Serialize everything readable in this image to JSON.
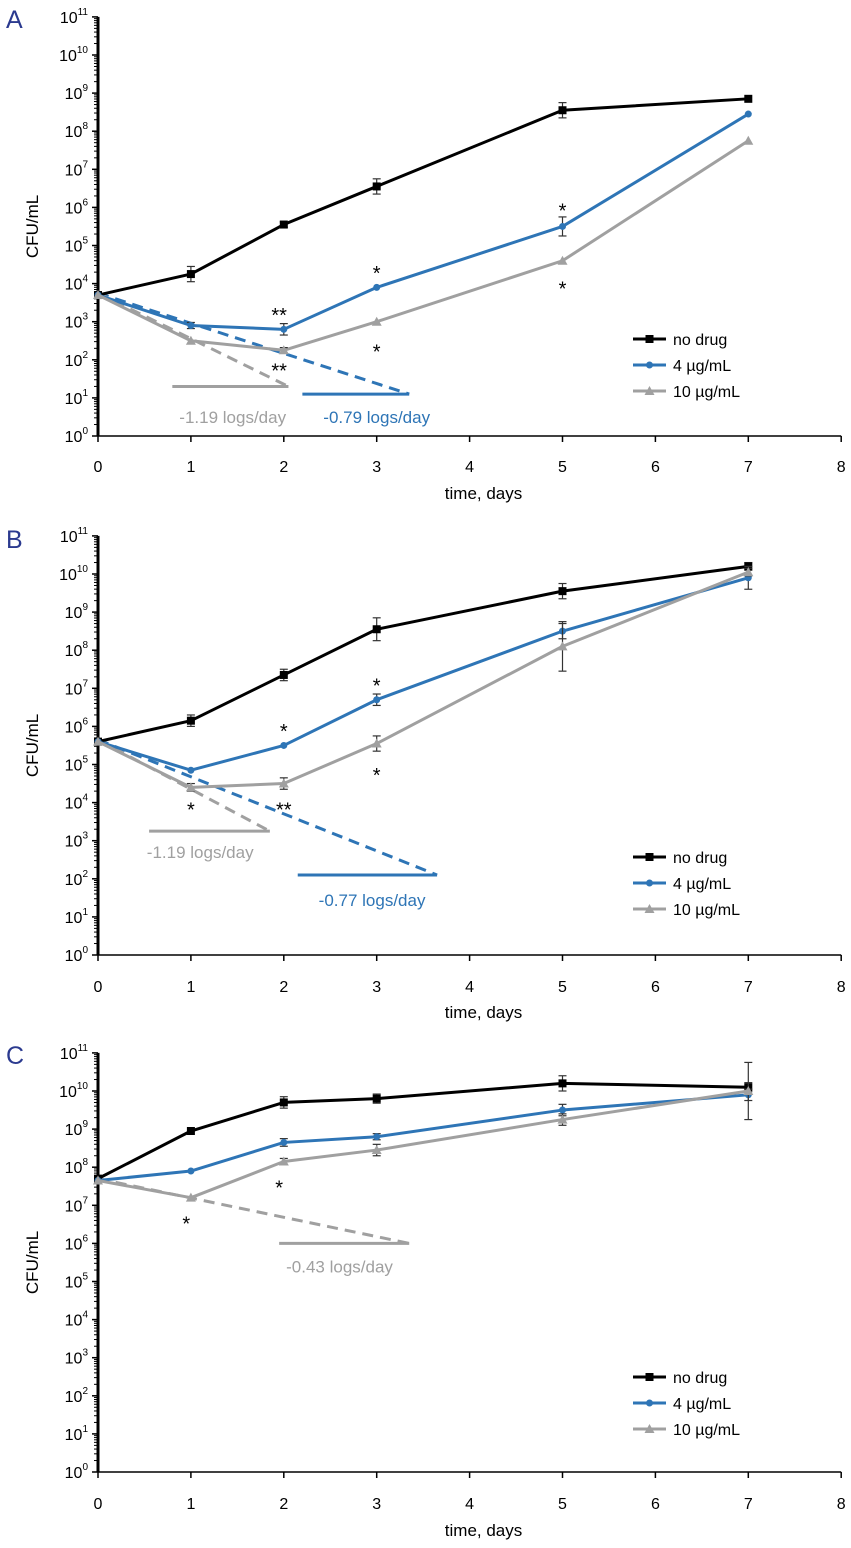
{
  "colors": {
    "no_drug": "#000000",
    "4ug": "#2e75b6",
    "10ug": "#a0a0a0",
    "panel_letter": "#2b3a8f"
  },
  "chart_data": [
    {
      "panel": "A",
      "type": "line",
      "xlabel": "time, days",
      "ylabel": "CFU/mL",
      "xlim": [
        0,
        8
      ],
      "xticks": [
        "0",
        "1",
        "2",
        "3",
        "4",
        "5",
        "6",
        "7",
        "8"
      ],
      "ylim_log10": [
        0,
        11
      ],
      "ytick_base": "10",
      "yticks_exp": [
        "0",
        "1",
        "2",
        "3",
        "4",
        "5",
        "6",
        "7",
        "8",
        "9",
        "10",
        "11"
      ],
      "legend": [
        "no drug",
        "4 µg/mL",
        "10 µg/mL"
      ],
      "series": [
        {
          "name": "no drug",
          "x": [
            0,
            1,
            2,
            3,
            5,
            7
          ],
          "log10_y": [
            3.7,
            4.25,
            5.55,
            6.55,
            8.55,
            8.85
          ],
          "err": [
            0.05,
            0.2,
            0.07,
            0.2,
            0.2,
            0.05
          ]
        },
        {
          "name": "4 µg/mL",
          "x": [
            0,
            1,
            2,
            3,
            5,
            7
          ],
          "log10_y": [
            3.7,
            2.9,
            2.8,
            3.9,
            5.5,
            8.45
          ],
          "err": [
            0.05,
            0.08,
            0.15,
            0.05,
            0.25,
            0.05
          ]
        },
        {
          "name": "10 µg/mL",
          "x": [
            0,
            1,
            2,
            3,
            5,
            7
          ],
          "log10_y": [
            3.7,
            2.5,
            2.25,
            3.0,
            4.6,
            7.75
          ],
          "err": [
            0.05,
            0.05,
            0.07,
            0.05,
            0.05,
            0.05
          ]
        }
      ],
      "trendlines": [
        {
          "series": "4 µg/mL",
          "x": [
            0,
            3.35
          ],
          "log10_y": [
            3.75,
            1.1
          ]
        },
        {
          "series": "10 µg/mL",
          "x": [
            0,
            2.05
          ],
          "log10_y": [
            3.75,
            1.3
          ]
        }
      ],
      "slope_labels": [
        {
          "series": "10 µg/mL",
          "text": "-1.19 logs/day",
          "bar_x": [
            0.8,
            2.05
          ],
          "bar_log10_y": 1.3,
          "text_x": 1.45,
          "text_log10_y": 0.5
        },
        {
          "series": "4 µg/mL",
          "text": "-0.79 logs/day",
          "bar_x": [
            2.2,
            3.35
          ],
          "bar_log10_y": 1.1,
          "text_x": 3.0,
          "text_log10_y": 0.5
        }
      ],
      "annotations": [
        {
          "text": "*",
          "x": 3,
          "log10_y": 4.3
        },
        {
          "text": "*",
          "x": 5,
          "log10_y": 5.95
        },
        {
          "text": "**",
          "x": 1.95,
          "log10_y": 3.2
        },
        {
          "text": "**",
          "x": 1.95,
          "log10_y": 1.75
        },
        {
          "text": "*",
          "x": 3,
          "log10_y": 2.25
        },
        {
          "text": "*",
          "x": 5,
          "log10_y": 3.9
        }
      ]
    },
    {
      "panel": "B",
      "type": "line",
      "xlabel": "time, days",
      "ylabel": "CFU/mL",
      "xlim": [
        0,
        8
      ],
      "xticks": [
        "0",
        "1",
        "2",
        "3",
        "4",
        "5",
        "6",
        "7",
        "8"
      ],
      "ylim_log10": [
        0,
        11
      ],
      "ytick_base": "10",
      "yticks_exp": [
        "0",
        "1",
        "2",
        "3",
        "4",
        "5",
        "6",
        "7",
        "8",
        "9",
        "10",
        "11"
      ],
      "legend": [
        "no drug",
        "4 µg/mL",
        "10 µg/mL"
      ],
      "series": [
        {
          "name": "no drug",
          "x": [
            0,
            1,
            2,
            3,
            5,
            7
          ],
          "log10_y": [
            5.6,
            6.15,
            7.35,
            8.55,
            9.55,
            10.2
          ],
          "err": [
            0.05,
            0.15,
            0.15,
            0.3,
            0.2,
            0.1
          ]
        },
        {
          "name": "4 µg/mL",
          "x": [
            0,
            1,
            2,
            3,
            5,
            7
          ],
          "log10_y": [
            5.6,
            4.85,
            5.5,
            6.7,
            8.5,
            9.9
          ],
          "err": [
            0.05,
            0.05,
            0.05,
            0.15,
            0.2,
            0.3
          ]
        },
        {
          "name": "10 µg/mL",
          "x": [
            0,
            1,
            2,
            3,
            5,
            7
          ],
          "log10_y": [
            5.6,
            4.4,
            4.5,
            5.55,
            8.1,
            10.05
          ],
          "err": [
            0.05,
            0.1,
            0.15,
            0.2,
            0.65,
            0.1
          ]
        }
      ],
      "trendlines": [
        {
          "series": "4 µg/mL",
          "x": [
            0,
            3.65
          ],
          "log10_y": [
            5.65,
            2.1
          ]
        },
        {
          "series": "10 µg/mL",
          "x": [
            0,
            1.85
          ],
          "log10_y": [
            5.65,
            3.25
          ]
        }
      ],
      "slope_labels": [
        {
          "series": "10 µg/mL",
          "text": "-1.19 logs/day",
          "bar_x": [
            0.55,
            1.85
          ],
          "bar_log10_y": 3.25,
          "text_x": 1.1,
          "text_log10_y": 2.7
        },
        {
          "series": "4 µg/mL",
          "text": "-0.77 logs/day",
          "bar_x": [
            2.15,
            3.65
          ],
          "bar_log10_y": 2.1,
          "text_x": 2.95,
          "text_log10_y": 1.45
        }
      ],
      "annotations": [
        {
          "text": "*",
          "x": 3,
          "log10_y": 7.1
        },
        {
          "text": "*",
          "x": 2,
          "log10_y": 5.9
        },
        {
          "text": "*",
          "x": 1,
          "log10_y": 3.85
        },
        {
          "text": "**",
          "x": 2,
          "log10_y": 3.85
        },
        {
          "text": "*",
          "x": 3,
          "log10_y": 4.75
        }
      ]
    },
    {
      "panel": "C",
      "type": "line",
      "xlabel": "time, days",
      "ylabel": "CFU/mL",
      "xlim": [
        0,
        8
      ],
      "xticks": [
        "0",
        "1",
        "2",
        "3",
        "4",
        "5",
        "6",
        "7",
        "8"
      ],
      "ylim_log10": [
        0,
        11
      ],
      "ytick_base": "10",
      "yticks_exp": [
        "0",
        "1",
        "2",
        "3",
        "4",
        "5",
        "6",
        "7",
        "8",
        "9",
        "10",
        "11"
      ],
      "legend": [
        "no drug",
        "4 µg/mL",
        "10 µg/mL"
      ],
      "series": [
        {
          "name": "no drug",
          "x": [
            0,
            1,
            2,
            3,
            5,
            7
          ],
          "log10_y": [
            7.7,
            8.95,
            9.7,
            9.8,
            10.2,
            10.1
          ],
          "err": [
            0.05,
            0.05,
            0.15,
            0.12,
            0.2,
            0.12
          ]
        },
        {
          "name": "4 µg/mL",
          "x": [
            0,
            1,
            2,
            3,
            5,
            7
          ],
          "log10_y": [
            7.65,
            7.9,
            8.65,
            8.8,
            9.5,
            9.9
          ],
          "err": [
            0.05,
            0.05,
            0.1,
            0.08,
            0.15,
            0.15
          ]
        },
        {
          "name": "10 µg/mL",
          "x": [
            0,
            1,
            2,
            3,
            5,
            7
          ],
          "log10_y": [
            7.65,
            7.2,
            8.15,
            8.45,
            9.25,
            10.0
          ],
          "err": [
            0.05,
            0.05,
            0.08,
            0.15,
            0.15,
            0.75
          ]
        }
      ],
      "trendlines": [
        {
          "series": "10 µg/mL",
          "x": [
            0,
            3.35
          ],
          "log10_y": [
            7.7,
            6.0
          ]
        }
      ],
      "slope_labels": [
        {
          "series": "10 µg/mL",
          "text": "-0.43 logs/day",
          "bar_x": [
            1.95,
            3.35
          ],
          "bar_log10_y": 6.0,
          "text_x": 2.6,
          "text_log10_y": 5.4
        }
      ],
      "annotations": [
        {
          "text": "*",
          "x": 0.95,
          "log10_y": 6.55
        },
        {
          "text": "*",
          "x": 1.95,
          "log10_y": 7.5
        }
      ]
    }
  ]
}
